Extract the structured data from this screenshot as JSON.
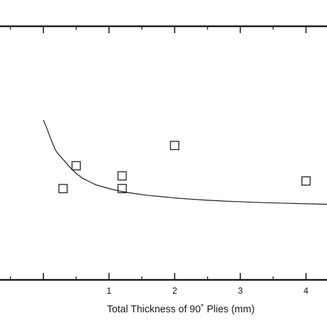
{
  "chart_data": {
    "type": "scatter",
    "title": "",
    "xlabel": "Total Thickness of 90˚ Plies (mm)",
    "ylabel": "",
    "xlim": [
      -0.66,
      4.32
    ],
    "ylim": [
      0,
      1
    ],
    "x_ticks": [
      0,
      1,
      2,
      3,
      4
    ],
    "x_tick_labels": [
      "1",
      "2",
      "3",
      "4"
    ],
    "x_tick_label_values": [
      1,
      2,
      3,
      4
    ],
    "grid": false,
    "legend": "none",
    "series": [
      {
        "type": "scatter",
        "marker": "open-square",
        "x": [
          0.3,
          0.5,
          1.2,
          1.2,
          2.0,
          4.0
        ],
        "y": [
          0.36,
          0.45,
          0.41,
          0.36,
          0.53,
          0.39
        ]
      },
      {
        "type": "line",
        "x": [
          0.0,
          0.05,
          0.1,
          0.15,
          0.2,
          0.3,
          0.4,
          0.5,
          0.6,
          0.8,
          1.0,
          1.2,
          1.4,
          1.6,
          1.8,
          2.0,
          2.2,
          2.5,
          2.8,
          3.0,
          3.3,
          3.6,
          4.0,
          4.32
        ],
        "y": [
          0.63,
          0.6,
          0.565,
          0.532,
          0.505,
          0.475,
          0.445,
          0.42,
          0.4,
          0.375,
          0.36,
          0.348,
          0.34,
          0.333,
          0.328,
          0.323,
          0.319,
          0.314,
          0.31,
          0.308,
          0.305,
          0.303,
          0.3,
          0.298
        ]
      }
    ]
  },
  "colors": {
    "axis": "#1a1a1a",
    "marker": "#1a1a1a",
    "curve": "#1a1a1a",
    "background": "#ffffff"
  }
}
